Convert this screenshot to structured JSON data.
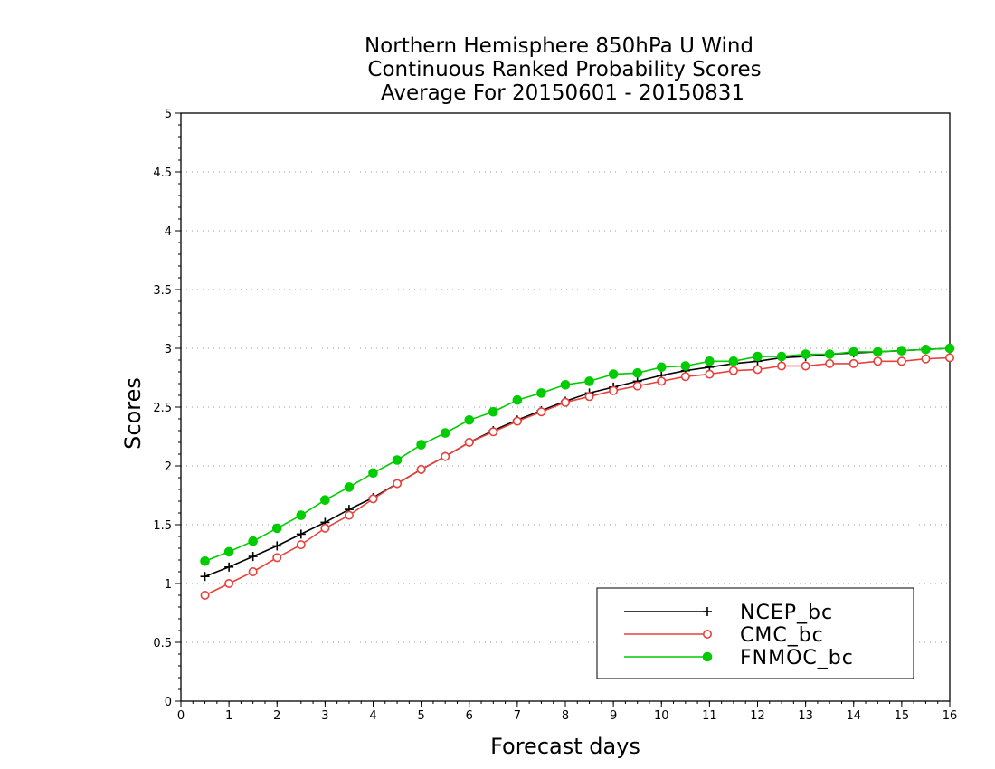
{
  "chart_data": {
    "type": "line",
    "title": [
      "Northern Hemisphere 850hPa U Wind",
      "Continuous Ranked Probability Scores",
      "Average For 20150601 - 20150831"
    ],
    "xlabel": "Forecast days",
    "ylabel": "Scores",
    "xlim": [
      0,
      16
    ],
    "ylim": [
      0,
      5
    ],
    "xticks": [
      "0",
      "1",
      "2",
      "3",
      "4",
      "5",
      "6",
      "7",
      "8",
      "9",
      "10",
      "11",
      "12",
      "13",
      "14",
      "15",
      "16"
    ],
    "yticks": [
      "0",
      "0.5",
      "1",
      "1.5",
      "2",
      "2.5",
      "3",
      "3.5",
      "4",
      "4.5",
      "5"
    ],
    "grid": "horizontal dotted",
    "legend_position": "bottom-right",
    "x": [
      0.5,
      1,
      1.5,
      2,
      2.5,
      3,
      3.5,
      4,
      4.5,
      5,
      5.5,
      6,
      6.5,
      7,
      7.5,
      8,
      8.5,
      9,
      9.5,
      10,
      10.5,
      11,
      11.5,
      12,
      12.5,
      13,
      13.5,
      14,
      14.5,
      15,
      15.5,
      16
    ],
    "series": [
      {
        "name": "NCEP_bc",
        "color": "#000000",
        "marker": "plus",
        "values": [
          1.06,
          1.14,
          1.23,
          1.32,
          1.42,
          1.52,
          1.63,
          1.73,
          1.85,
          1.97,
          2.08,
          2.2,
          2.3,
          2.39,
          2.47,
          2.55,
          2.62,
          2.67,
          2.72,
          2.77,
          2.81,
          2.84,
          2.87,
          2.89,
          2.92,
          2.93,
          2.95,
          2.96,
          2.97,
          2.98,
          2.99,
          3.0
        ]
      },
      {
        "name": "CMC_bc",
        "color": "#e8413c",
        "marker": "open-circle",
        "values": [
          0.9,
          1.0,
          1.1,
          1.22,
          1.33,
          1.47,
          1.58,
          1.72,
          1.85,
          1.97,
          2.08,
          2.2,
          2.29,
          2.38,
          2.46,
          2.54,
          2.59,
          2.64,
          2.68,
          2.72,
          2.76,
          2.78,
          2.81,
          2.82,
          2.85,
          2.85,
          2.87,
          2.87,
          2.89,
          2.89,
          2.91,
          2.92
        ]
      },
      {
        "name": "FNMOC_bc",
        "color": "#00cc00",
        "marker": "filled-circle",
        "values": [
          1.19,
          1.27,
          1.36,
          1.47,
          1.58,
          1.71,
          1.82,
          1.94,
          2.05,
          2.18,
          2.28,
          2.39,
          2.46,
          2.56,
          2.62,
          2.69,
          2.72,
          2.78,
          2.79,
          2.84,
          2.85,
          2.89,
          2.89,
          2.93,
          2.93,
          2.95,
          2.95,
          2.97,
          2.97,
          2.98,
          2.99,
          3.0
        ]
      }
    ]
  }
}
